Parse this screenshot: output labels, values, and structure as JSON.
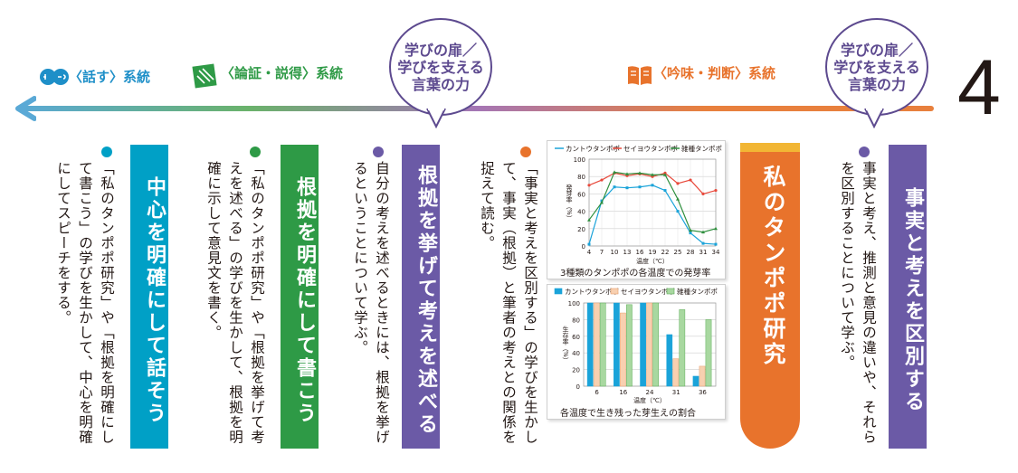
{
  "header": {
    "talk_category": "〈話す〉系統",
    "argue_category": "〈論証・説得〉系統",
    "read_category": "〈吟味・判断〉系統",
    "bubble_left": [
      "学びの扉／",
      "学びを支える",
      "言葉の力"
    ],
    "bubble_right": [
      "学びの扉／",
      "学びを支える",
      "言葉の力"
    ],
    "unit_number": "4"
  },
  "columns": {
    "fact_title": "事実と考えを区別する",
    "fact_text": "事実と考え、推測と意見の違いや、それらを区別することについて学ぶ。",
    "tanpopo_title": "私のタンポポ研究",
    "tanpopo_text": "「事実と考えを区別する」の学びを生かして、事実（根拠）と筆者の考えとの関係を捉えて読む。",
    "reason_title": "根拠を挙げて考えを述べる",
    "reason_text": "自分の考えを述べるときには、根拠を挙げるということについて学ぶ。",
    "write_title": "根拠を明確にして書こう",
    "write_text": "「私のタンポポ研究」や「根拠を挙げて考えを述べる」の学びを生かして、根拠を明確に示して意見文を書く。",
    "speak_title": "中心を明確にして話そう",
    "speak_text": "「私のタンポポ研究」や「根拠を明確にして書こう」の学びを生かして、中心を明確にしてスピーチをする。"
  },
  "colors": {
    "purple": "#6b5aa6",
    "orange": "#e8732c",
    "green": "#2e9a46",
    "blue": "#00a0c6",
    "kanto": "#1aa3d9",
    "seiyo": "#e8493b",
    "zasshu": "#2f8f3e"
  },
  "chart_data": [
    {
      "type": "line",
      "title": "3種類のタンポポの各温度での発芽率",
      "xlabel": "温度（℃）",
      "ylabel": "発芽率（%）",
      "x": [
        4,
        7,
        10,
        13,
        16,
        19,
        22,
        25,
        28,
        31,
        34
      ],
      "ylim": [
        0,
        100
      ],
      "yticks": [
        0,
        20,
        40,
        60,
        80,
        100
      ],
      "legend_position": "top",
      "series": [
        {
          "name": "カントウタンポポ",
          "values": [
            2,
            52,
            68,
            67,
            68,
            70,
            64,
            40,
            15,
            3,
            2
          ]
        },
        {
          "name": "セイヨウタンポポ",
          "values": [
            70,
            76,
            84,
            81,
            83,
            80,
            84,
            72,
            76,
            60,
            64
          ]
        },
        {
          "name": "雑種タンポポ",
          "values": [
            30,
            50,
            85,
            83,
            84,
            82,
            82,
            54,
            18,
            16,
            20
          ]
        }
      ]
    },
    {
      "type": "bar",
      "title": "各温度で生き残った芽生えの割合",
      "xlabel": "温度（℃）",
      "ylabel": "生存率（%）",
      "categories": [
        "6",
        "16",
        "24",
        "31",
        "36"
      ],
      "ylim": [
        0,
        100
      ],
      "yticks": [
        0,
        20,
        40,
        60,
        80,
        100
      ],
      "legend_position": "top",
      "series": [
        {
          "name": "カントウタンポポ",
          "values": [
            100,
            100,
            100,
            62,
            12
          ]
        },
        {
          "name": "セイヨウタンポポ",
          "values": [
            100,
            88,
            100,
            33,
            24
          ]
        },
        {
          "name": "雑種タンポポ",
          "values": [
            100,
            98,
            100,
            92,
            80
          ]
        }
      ]
    }
  ]
}
